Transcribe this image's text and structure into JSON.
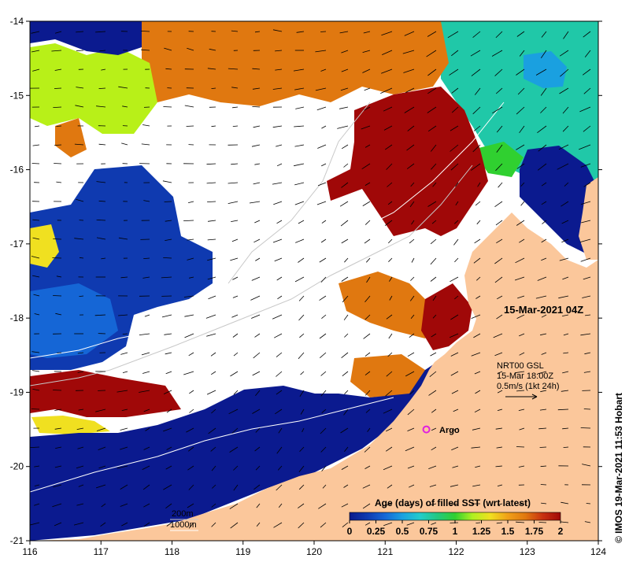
{
  "map": {
    "timestamp": "15-Mar-2021 04Z",
    "credit": "© IMOS 19-Mar-2021 11:53 Hobart",
    "x_ticks": [
      "116",
      "117",
      "118",
      "119",
      "120",
      "121",
      "122",
      "123",
      "124"
    ],
    "y_ticks": [
      "-14",
      "-15",
      "-16",
      "-17",
      "-18",
      "-19",
      "-20",
      "-21"
    ],
    "lon_range": [
      116,
      124
    ],
    "lat_range": [
      -21,
      -14
    ]
  },
  "current_legend": {
    "line1": "NRT00 GSL",
    "line2": "15-Mar 18:00Z",
    "line3": "0.5m/s (1kt 24h)"
  },
  "argo": {
    "label": "Argo",
    "lon": 121.58,
    "lat": -19.5,
    "color": "#e020e0"
  },
  "isobaths": {
    "label1": "200m",
    "label2": "1000m"
  },
  "colorbar": {
    "title": "Age (days) of filled SST (wrt latest)",
    "ticks": [
      "0",
      "0.25",
      "0.5",
      "0.75",
      "1",
      "1.25",
      "1.5",
      "1.75",
      "2"
    ],
    "colors": [
      "#0a1a8c",
      "#0f3ab0",
      "#1566d6",
      "#1aa0e0",
      "#22cccc",
      "#22c880",
      "#30d030",
      "#b0f020",
      "#f0e020",
      "#f0a018",
      "#e07810",
      "#c83010",
      "#a00808"
    ]
  },
  "colors": {
    "land": "#fbc79b",
    "dark_blue": "#0b1a8f",
    "mid_blue": "#0f3ab0",
    "orange": "#e07810",
    "dark_red": "#a00808",
    "teal": "#20c8a8",
    "lime": "#b8f018",
    "nodata": "#ffffff"
  }
}
